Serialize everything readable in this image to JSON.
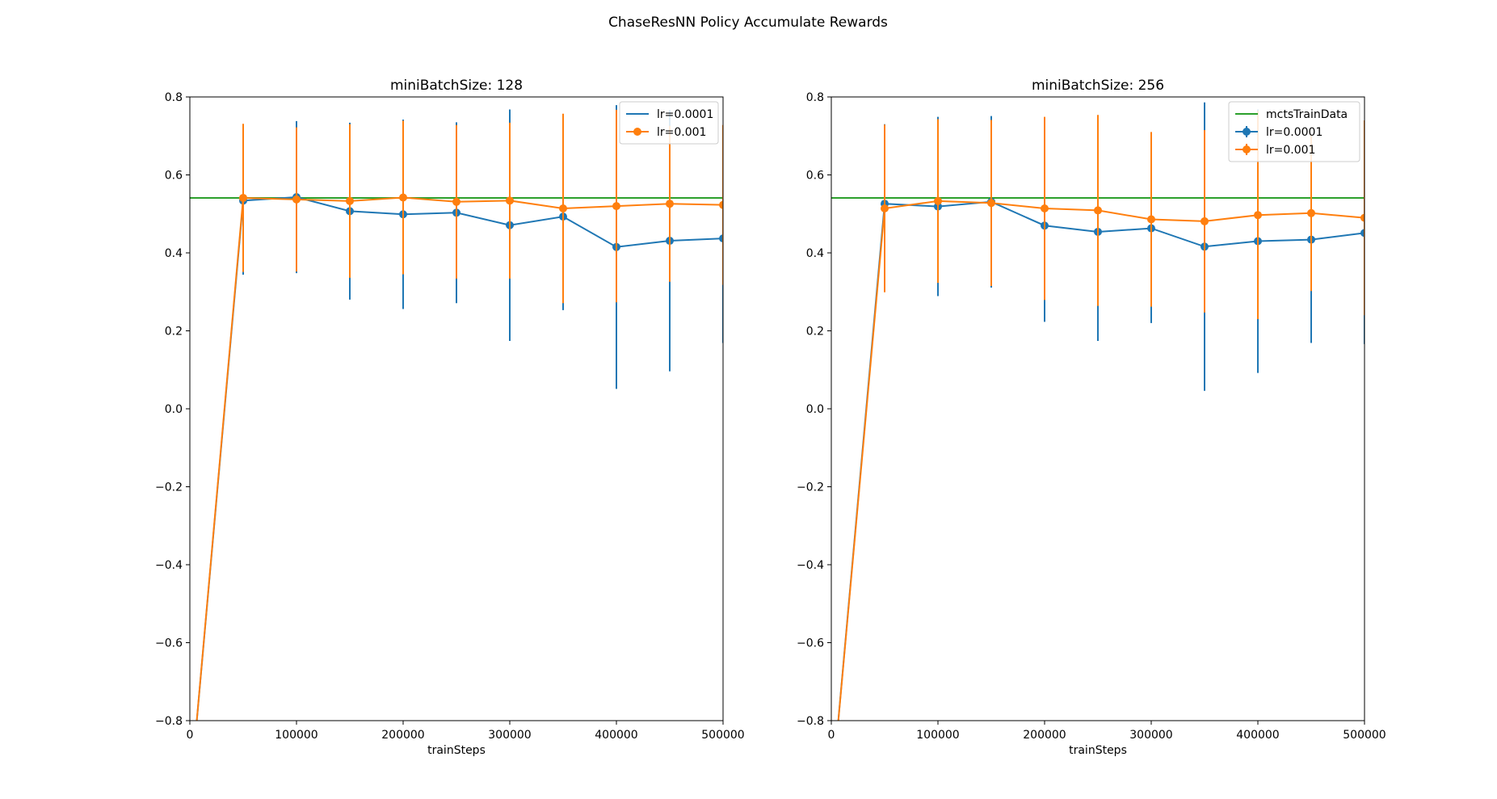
{
  "figure": {
    "suptitle": "ChaseResNN Policy Accumulate Rewards"
  },
  "chart_data": [
    {
      "type": "line",
      "title": "miniBatchSize: 128",
      "xlabel": "trainSteps",
      "ylabel": "",
      "xlim": [
        0,
        500000
      ],
      "ylim": [
        -0.8,
        0.8
      ],
      "xticks": [
        0,
        100000,
        200000,
        300000,
        400000,
        500000
      ],
      "xtick_labels": [
        "0",
        "100000",
        "200000",
        "300000",
        "400000",
        "500000"
      ],
      "yticks": [
        -0.8,
        -0.6,
        -0.4,
        -0.2,
        0.0,
        0.2,
        0.4,
        0.6,
        0.8
      ],
      "ytick_labels": [
        "−0.8",
        "−0.6",
        "−0.4",
        "−0.2",
        "0.0",
        "0.2",
        "0.4",
        "0.6",
        "0.8"
      ],
      "grid": false,
      "legend_position": "top-right",
      "x": [
        0,
        50000,
        100000,
        150000,
        200000,
        250000,
        300000,
        350000,
        400000,
        450000,
        500000
      ],
      "series": [
        {
          "name": "lr=0.0001",
          "color": "#1f77b4",
          "marker": "circle",
          "values": [
            -1.0,
            0.534,
            0.543,
            0.507,
            0.499,
            0.503,
            0.471,
            0.493,
            0.415,
            0.431,
            0.437
          ],
          "error": [
            null,
            0.19,
            0.195,
            0.227,
            0.243,
            0.232,
            0.297,
            0.24,
            0.364,
            0.335,
            0.268
          ]
        },
        {
          "name": "lr=0.001",
          "color": "#ff7f0e",
          "marker": "circle",
          "values": [
            -1.0,
            0.541,
            0.537,
            0.533,
            0.542,
            0.531,
            0.534,
            0.514,
            0.52,
            0.526,
            0.523
          ],
          "error": [
            null,
            0.19,
            0.185,
            0.197,
            0.197,
            0.197,
            0.2,
            0.243,
            0.247,
            0.2,
            0.205
          ]
        }
      ],
      "reference_line": {
        "name": "",
        "y": 0.541,
        "color": "#2ca02c"
      }
    },
    {
      "type": "line",
      "title": "miniBatchSize: 256",
      "xlabel": "trainSteps",
      "ylabel": "",
      "xlim": [
        0,
        500000
      ],
      "ylim": [
        -0.8,
        0.8
      ],
      "xticks": [
        0,
        100000,
        200000,
        300000,
        400000,
        500000
      ],
      "xtick_labels": [
        "0",
        "100000",
        "200000",
        "300000",
        "400000",
        "500000"
      ],
      "yticks": [
        -0.8,
        -0.6,
        -0.4,
        -0.2,
        0.0,
        0.2,
        0.4,
        0.6,
        0.8
      ],
      "ytick_labels": [
        "−0.8",
        "−0.6",
        "−0.4",
        "−0.2",
        "0.0",
        "0.2",
        "0.4",
        "0.6",
        "0.8"
      ],
      "grid": false,
      "legend_position": "top-right",
      "x": [
        0,
        50000,
        100000,
        150000,
        200000,
        250000,
        300000,
        350000,
        400000,
        450000,
        500000
      ],
      "series": [
        {
          "name": "lr=0.0001",
          "color": "#1f77b4",
          "marker": "circle",
          "values": [
            -1.0,
            0.526,
            0.519,
            0.531,
            0.47,
            0.454,
            0.463,
            0.416,
            0.43,
            0.434,
            0.451
          ],
          "error": [
            null,
            0.204,
            0.23,
            0.22,
            0.247,
            0.28,
            0.243,
            0.37,
            0.338,
            0.265,
            0.285
          ]
        },
        {
          "name": "lr=0.001",
          "color": "#ff7f0e",
          "marker": "circle",
          "values": [
            -1.0,
            0.514,
            0.533,
            0.528,
            0.514,
            0.509,
            0.486,
            0.481,
            0.497,
            0.502,
            0.49
          ],
          "error": [
            null,
            0.215,
            0.21,
            0.213,
            0.235,
            0.245,
            0.224,
            0.234,
            0.267,
            0.2,
            0.25
          ]
        }
      ],
      "reference_line": {
        "name": "mctsTrainData",
        "y": 0.541,
        "color": "#2ca02c"
      }
    }
  ]
}
